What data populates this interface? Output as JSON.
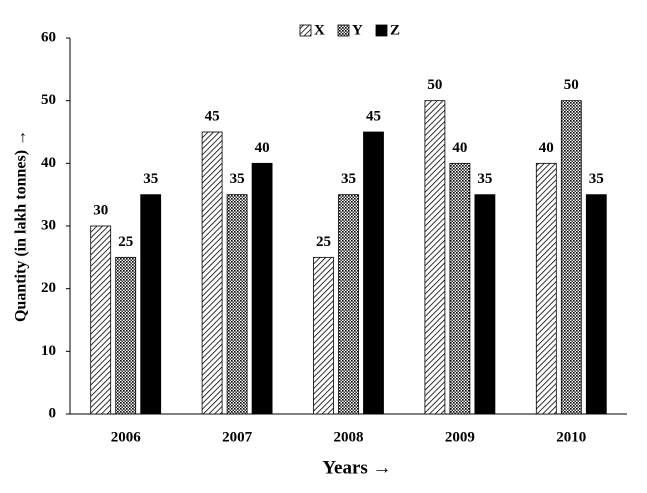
{
  "chart_data": {
    "type": "bar",
    "x_label": "Years →",
    "y_label": "Quantity (in lakh tonnes) →",
    "categories": [
      "2006",
      "2007",
      "2008",
      "2009",
      "2010"
    ],
    "series": [
      {
        "name": "X",
        "color": "#000000",
        "pattern": "hatch",
        "values": [
          30,
          45,
          25,
          50,
          40
        ]
      },
      {
        "name": "Y",
        "color": "#000000",
        "pattern": "dots",
        "values": [
          25,
          35,
          35,
          40,
          50
        ]
      },
      {
        "name": "Z",
        "color": "#000000",
        "pattern": "solid",
        "values": [
          35,
          40,
          45,
          35,
          35
        ]
      }
    ],
    "ylim": [
      0,
      60
    ],
    "yticks": [
      0,
      10,
      20,
      30,
      40,
      50,
      60
    ],
    "grid": false,
    "legend": "top"
  }
}
